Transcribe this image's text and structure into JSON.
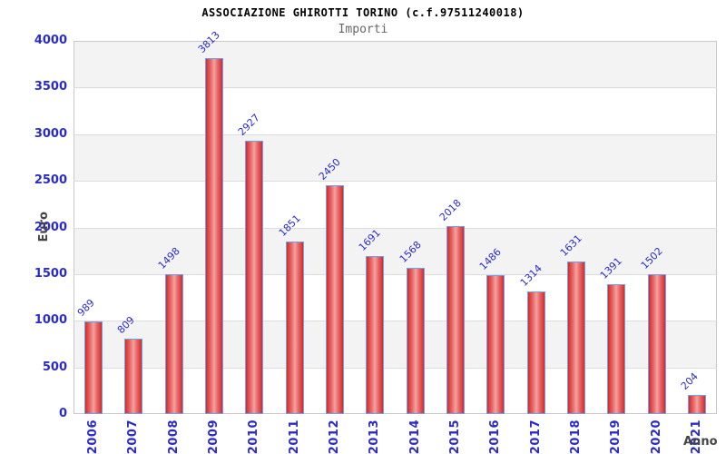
{
  "header": {
    "title": "ASSOCIAZIONE GHIROTTI TORINO (c.f.97511240018)",
    "subtitle": "Importi"
  },
  "chart_data": {
    "type": "bar",
    "title": "ASSOCIAZIONE GHIROTTI TORINO (c.f.97511240018)",
    "subtitle": "Importi",
    "categories": [
      "2006",
      "2007",
      "2008",
      "2009",
      "2010",
      "2011",
      "2012",
      "2013",
      "2014",
      "2015",
      "2016",
      "2017",
      "2018",
      "2019",
      "2020",
      "2021"
    ],
    "values": [
      989,
      809,
      1498,
      3813,
      2927,
      1851,
      2450,
      1691,
      1568,
      2018,
      1486,
      1314,
      1631,
      1391,
      1502,
      204
    ],
    "xlabel": "Anno",
    "ylabel": "Euro",
    "ylim": [
      0,
      4000
    ],
    "ytick_step": 500,
    "yticks": [
      "0",
      "500",
      "1000",
      "1500",
      "2000",
      "2500",
      "3000",
      "3500",
      "4000"
    ],
    "grid": true,
    "legend_position": "none",
    "bar_value_labels_rotated_deg": -45,
    "colors": {
      "tick_label": "#2b2bcc",
      "value_label": "#2b2bcc",
      "bar_border": "#66a3f2",
      "bar_edge_fill": "#d42a2a",
      "bar_center_fill": "#f2a2a2",
      "band": "#f3f3f3",
      "gridline": "#dddddd",
      "plot_border": "#c9c9c9",
      "axis_title": "#444444",
      "title": "#000000",
      "subtitle": "#666666",
      "background": "#ffffff"
    }
  }
}
